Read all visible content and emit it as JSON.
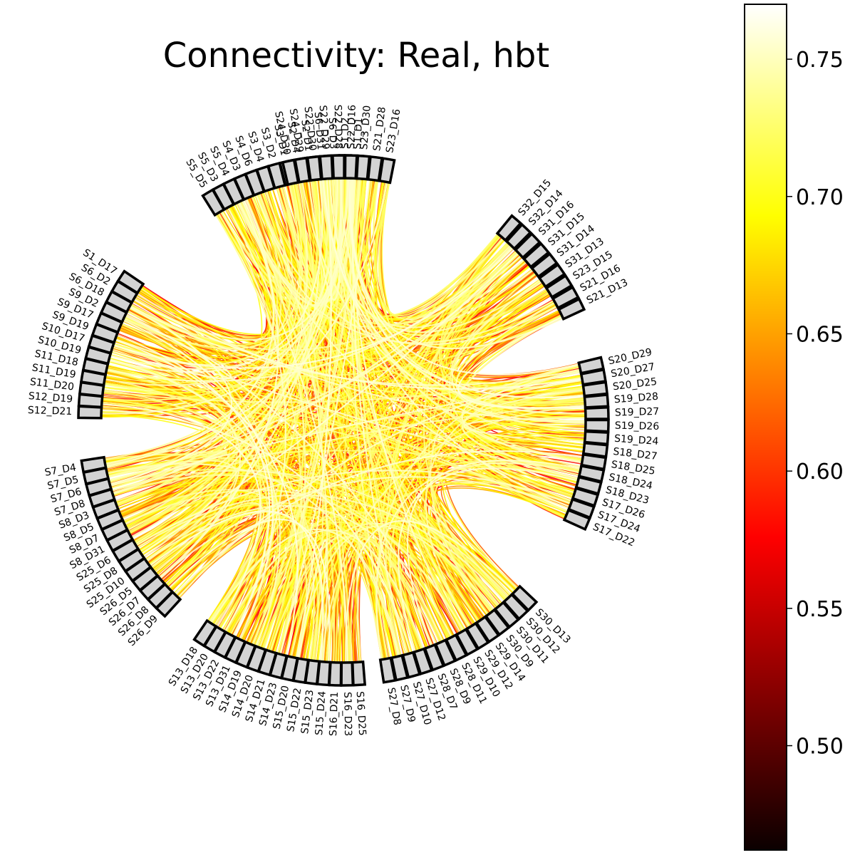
{
  "chart_data": {
    "type": "chord",
    "title": "Connectivity: Real, hbt",
    "colormap": "hot",
    "node_color": "#d3d3d3",
    "colorbar": {
      "range": [
        0.462,
        0.77
      ],
      "ticks": [
        "0.50",
        "0.55",
        "0.60",
        "0.65",
        "0.70",
        "0.75"
      ],
      "tick_values": [
        0.5,
        0.55,
        0.6,
        0.65,
        0.7,
        0.75
      ]
    },
    "groups": [
      {
        "nodes": [
          "S1_D1",
          "S1_D2",
          "S6_D3",
          "S6_D31",
          "S2_D1",
          "S2_D4",
          "S3_D1",
          "S3_D2",
          "S3_D4",
          "S4_D6",
          "S4_D3",
          "S5_D4",
          "S5_D3",
          "S5_D5"
        ]
      },
      {
        "nodes": [
          "S1_D17",
          "S6_D2",
          "S6_D18",
          "S9_D2",
          "S9_D17",
          "S9_D19",
          "S10_D17",
          "S10_D19",
          "S11_D18",
          "S11_D19",
          "S11_D20",
          "S12_D19",
          "S12_D21"
        ]
      },
      {
        "nodes": [
          "S7_D4",
          "S7_D5",
          "S7_D6",
          "S7_D8",
          "S8_D3",
          "S8_D5",
          "S8_D7",
          "S8_D31",
          "S25_D6",
          "S25_D8",
          "S25_D10",
          "S26_D5",
          "S26_D7",
          "S26_D8",
          "S26_D9"
        ]
      },
      {
        "nodes": [
          "S13_D18",
          "S13_D20",
          "S13_D22",
          "S13_D31",
          "S14_D19",
          "S14_D20",
          "S14_D21",
          "S14_D23",
          "S15_D20",
          "S15_D22",
          "S15_D23",
          "S15_D24",
          "S16_D21",
          "S16_D23",
          "S16_D25"
        ]
      },
      {
        "nodes": [
          "S27_D8",
          "S27_D9",
          "S27_D10",
          "S27_D12",
          "S28_D7",
          "S28_D9",
          "S28_D11",
          "S29_D10",
          "S29_D12",
          "S29_D14",
          "S30_D9",
          "S30_D11",
          "S30_D12",
          "S30_D13"
        ]
      },
      {
        "nodes": [
          "S17_D22",
          "S17_D24",
          "S17_D26",
          "S18_D23",
          "S18_D24",
          "S18_D25",
          "S18_D27",
          "S19_D24",
          "S19_D26",
          "S19_D27",
          "S19_D28",
          "S20_D25",
          "S20_D27",
          "S20_D29"
        ]
      },
      {
        "nodes": [
          "S21_D13",
          "S21_D16",
          "S23_D15",
          "S31_D13",
          "S31_D14",
          "S31_D15",
          "S31_D16",
          "S32_D14",
          "S32_D15"
        ]
      },
      {
        "nodes": [
          "S24_D30",
          "S24_D29",
          "S22_D30",
          "S22_D29",
          "S22_D28",
          "S22_D16",
          "S23_D30",
          "S21_D28",
          "S23_D16"
        ]
      }
    ]
  }
}
